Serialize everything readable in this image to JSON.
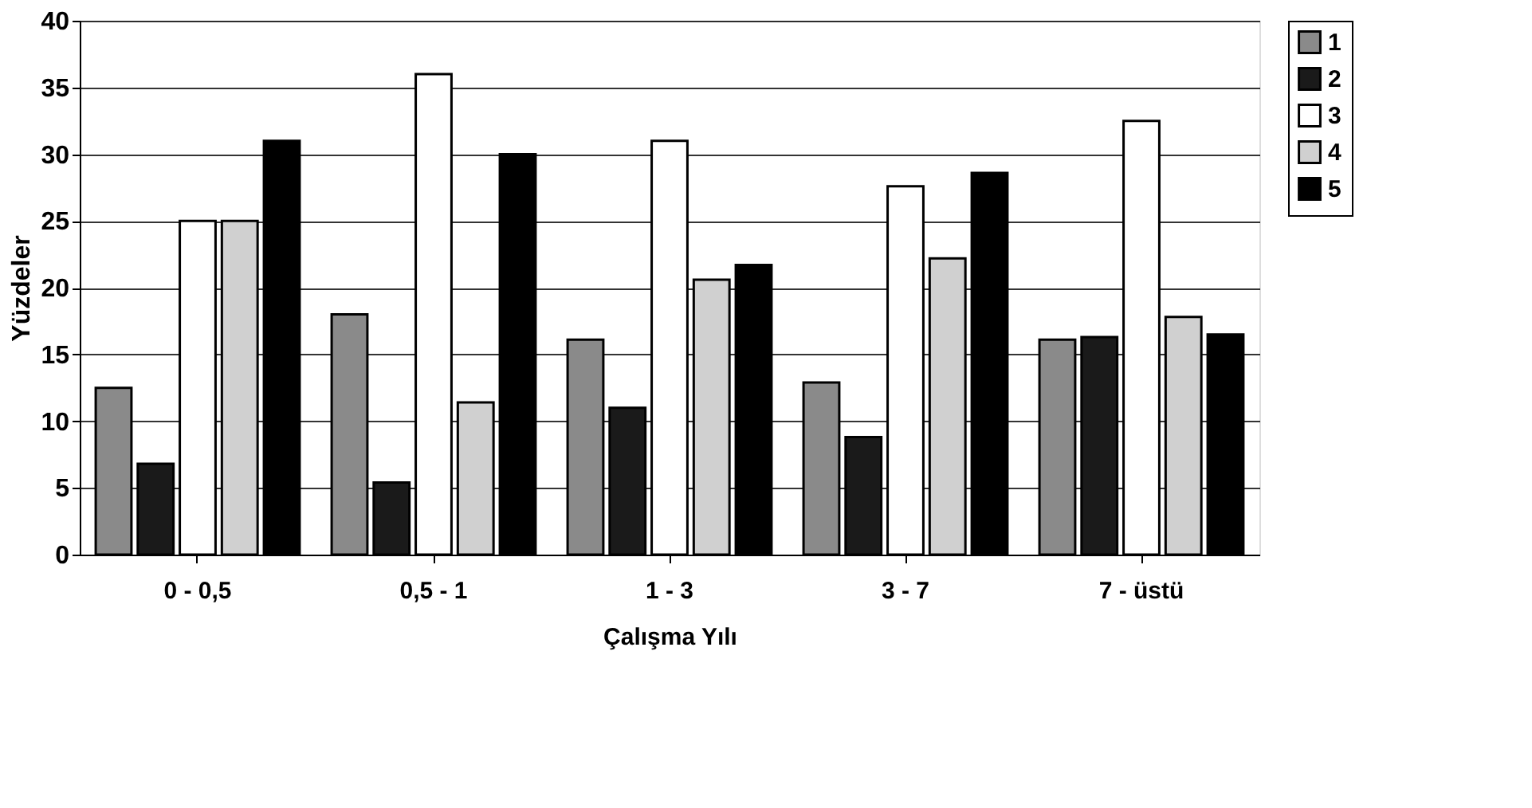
{
  "chart_data": {
    "type": "bar",
    "xlabel": "Çalışma Yılı",
    "ylabel": "Yüzdeler",
    "categories": [
      "0 - 0,5",
      "0,5 - 1",
      "1 - 3",
      "3 - 7",
      "7 - üstü"
    ],
    "series": [
      {
        "name": "1",
        "color": "#8a8a8a",
        "values": [
          12.5,
          18,
          16.1,
          12.9,
          16.1
        ]
      },
      {
        "name": "2",
        "color": "#1a1a1a",
        "values": [
          6.8,
          5.4,
          11,
          8.8,
          16.3
        ]
      },
      {
        "name": "3",
        "color": "#ffffff",
        "values": [
          25,
          36,
          31,
          27.6,
          32.5
        ]
      },
      {
        "name": "4",
        "color": "#d0d0d0",
        "values": [
          25,
          11.4,
          20.6,
          22.2,
          17.8
        ]
      },
      {
        "name": "5",
        "color": "#000000",
        "values": [
          31,
          30,
          21.7,
          28.6,
          16.5
        ]
      }
    ],
    "ylim": [
      0,
      40
    ],
    "yticks": [
      0,
      5,
      10,
      15,
      20,
      25,
      30,
      35,
      40
    ],
    "grid": "y",
    "legend": "right"
  }
}
